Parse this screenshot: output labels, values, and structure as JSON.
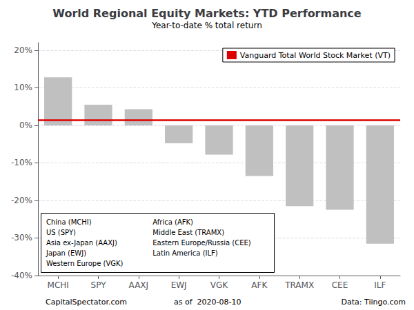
{
  "chart_data": {
    "type": "bar",
    "title": "World Regional Equity Markets: YTD Performance",
    "subtitle": "Year-to-date % total return",
    "categories": [
      "MCHI",
      "SPY",
      "AAXJ",
      "EWJ",
      "VGK",
      "AFK",
      "TRAMX",
      "CEE",
      "ILF"
    ],
    "values": [
      12.8,
      5.5,
      4.3,
      -4.8,
      -7.8,
      -13.5,
      -21.5,
      -22.5,
      -31.5
    ],
    "color": "#c0c0c0",
    "ylim": [
      -40,
      22
    ],
    "yticks": [
      {
        "value": -40,
        "label": "-40%"
      },
      {
        "value": -30,
        "label": "-30%"
      },
      {
        "value": -20,
        "label": "-20%"
      },
      {
        "value": -10,
        "label": "-10%"
      },
      {
        "value": 0,
        "label": "0%"
      },
      {
        "value": 10,
        "label": "10%"
      },
      {
        "value": 20,
        "label": "20%"
      }
    ],
    "grid": true,
    "legend": "upper right",
    "reference_line": {
      "name": "Vanguard Total World Stock Market (VT)",
      "value": 1.5,
      "color": "#dd0000"
    },
    "annotations": [
      [
        "China (MCHI)",
        "US (SPY)",
        "Asia ex-Japan (AAXJ)",
        "Japan (EWJ)",
        "Western Europe (VGK)"
      ],
      [
        "Africa (AFK)",
        "Middle East (TRAMX)",
        "Eastern Europe/Russia (CEE)",
        "Latin America (ILF)"
      ]
    ],
    "footer": [
      "CapitalSpectator.com",
      "as of  2020-08-10",
      "Data: Tiingo.com"
    ]
  }
}
